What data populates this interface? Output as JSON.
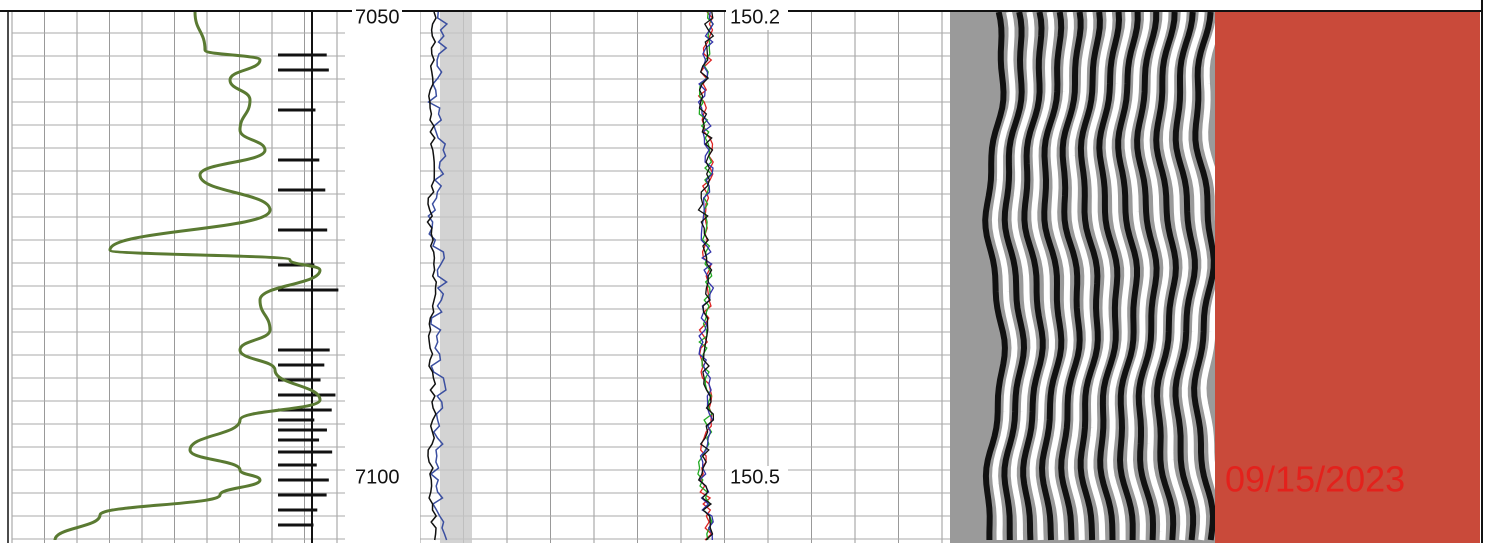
{
  "depth_track": {
    "labels": [
      "7050",
      "7100"
    ]
  },
  "time_track": {
    "labels": [
      "150.2",
      "150.5"
    ]
  },
  "stamp": {
    "date": "09/15/2023"
  }
}
